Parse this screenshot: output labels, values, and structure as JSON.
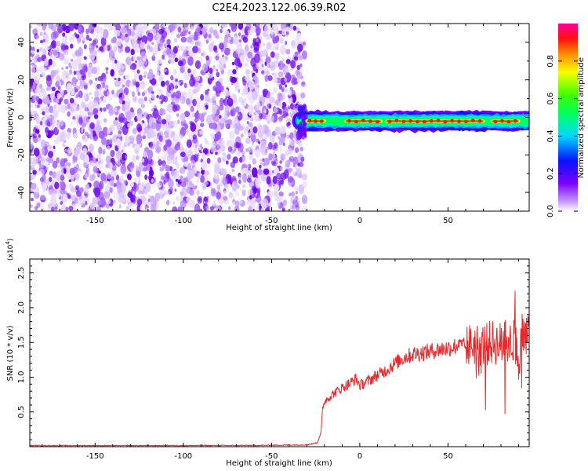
{
  "title": "C2E4.2023.122.06.39.R02",
  "colors": {
    "snr_line": "#e8292b",
    "noise_dots": "#7a1cf0",
    "axis": "#000000"
  },
  "chart_data": [
    {
      "type": "heatmap",
      "xlabel": "Height of straight line (km)",
      "ylabel": "Frequency (Hz)",
      "xlim": [
        -187,
        96
      ],
      "ylim": [
        -50,
        50
      ],
      "x_ticks": [
        -150,
        -100,
        -50,
        0,
        50
      ],
      "y_ticks": [
        -40,
        -20,
        0,
        20,
        40
      ],
      "colorbar": {
        "label": "Normalized spectral amplitude",
        "range": [
          0,
          1
        ],
        "ticks": [
          0.0,
          0.2,
          0.4,
          0.6,
          0.8
        ],
        "colormap": "rainbow (violet-blue-cyan-green-yellow-red-magenta)"
      },
      "noise_region_x": [
        -187,
        -33
      ],
      "signal_band": {
        "x_range": [
          -33,
          96
        ],
        "center_freq_start": -2,
        "center_freq_end": -2,
        "width_hz": 6,
        "peak_amplitude_segments": [
          [
            -30,
            -20
          ],
          [
            -8,
            12
          ],
          [
            15,
            70
          ],
          [
            75,
            90
          ]
        ]
      }
    },
    {
      "type": "line",
      "xlabel": "Height of straight line (km)",
      "ylabel": "SNR (10 * v/v)",
      "y_scale_note": "(x10^4)",
      "xlim": [
        -187,
        96
      ],
      "ylim": [
        0,
        27000
      ],
      "x_ticks": [
        -150,
        -100,
        -50,
        0,
        50
      ],
      "y_ticks": [
        5000,
        10000,
        15000,
        20000,
        25000
      ],
      "y_tick_labels": [
        "0.5",
        "1.0",
        "1.5",
        "2.0",
        "2.5"
      ],
      "series": [
        {
          "x": [
            -187,
            -120,
            -60,
            -30,
            -24,
            -22,
            -21,
            -20,
            -18,
            -15,
            -10,
            -5,
            -2,
            0,
            5,
            10,
            15,
            20,
            25,
            30,
            35,
            40,
            45,
            50,
            55,
            60,
            65,
            70,
            75,
            80,
            85,
            88,
            90,
            92,
            94,
            96
          ],
          "y": [
            100,
            100,
            120,
            200,
            500,
            2000,
            5500,
            6500,
            7000,
            7600,
            8500,
            9200,
            9800,
            8800,
            9500,
            10300,
            11000,
            12000,
            12800,
            13300,
            13500,
            13700,
            14000,
            14200,
            14500,
            14400,
            14800,
            14600,
            15000,
            14800,
            15200,
            15600,
            12000,
            16000,
            15000,
            16500
          ]
        }
      ]
    }
  ]
}
